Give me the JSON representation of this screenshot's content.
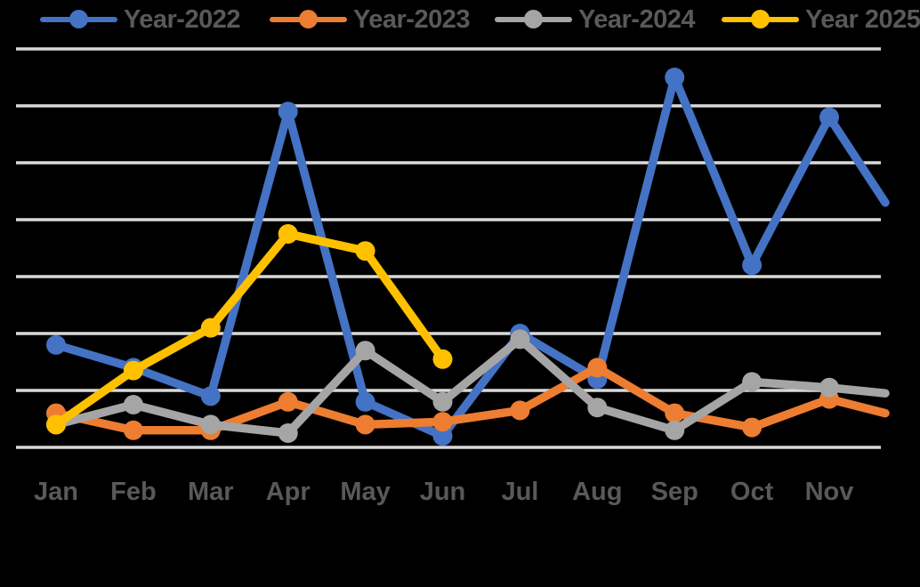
{
  "legend": {
    "position": "top",
    "items": [
      {
        "label": "Year-2022",
        "color": "#4472C4"
      },
      {
        "label": "Year-2023",
        "color": "#ED7D31"
      },
      {
        "label": "Year-2024",
        "color": "#A5A5A5"
      },
      {
        "label": "Year 2025",
        "color": "#FFC000",
        "truncated_at_right_edge": true
      }
    ]
  },
  "chart_data": {
    "type": "line",
    "title": "",
    "xlabel": "",
    "ylabel": "",
    "categories": [
      "Jan",
      "Feb",
      "Mar",
      "Apr",
      "May",
      "Jun",
      "Jul",
      "Aug",
      "Sep",
      "Oct",
      "Nov"
    ],
    "x_axis_note": "Dec category cut off at right edge of image",
    "ylim": [
      0,
      70
    ],
    "gridline_step": 10,
    "grid": true,
    "y_axis_labels_visible": false,
    "legend_position": "top",
    "series": [
      {
        "name": "Year-2022",
        "color": "#4472C4",
        "values": [
          18,
          14,
          9,
          59,
          8,
          2,
          20,
          12,
          65,
          32,
          58
        ],
        "edge_exit_value": 43
      },
      {
        "name": "Year-2023",
        "color": "#ED7D31",
        "values": [
          6,
          3,
          3,
          8,
          4,
          4.5,
          6.5,
          14,
          6,
          3.5,
          8.5
        ],
        "edge_exit_value": 6
      },
      {
        "name": "Year-2024",
        "color": "#A5A5A5",
        "values": [
          4,
          7.5,
          4,
          2.5,
          17,
          8,
          19,
          7,
          3,
          11.5,
          10.5
        ],
        "edge_exit_value": 9.5
      },
      {
        "name": "Year 2025",
        "color": "#FFC000",
        "values": [
          4,
          13.5,
          21,
          37.5,
          34.5,
          15.5,
          null,
          null,
          null,
          null,
          null
        ],
        "edge_exit_value": null
      }
    ]
  },
  "colors": {
    "background": "#000000",
    "gridline": "#D9D9D9",
    "label_text": "#595959"
  }
}
